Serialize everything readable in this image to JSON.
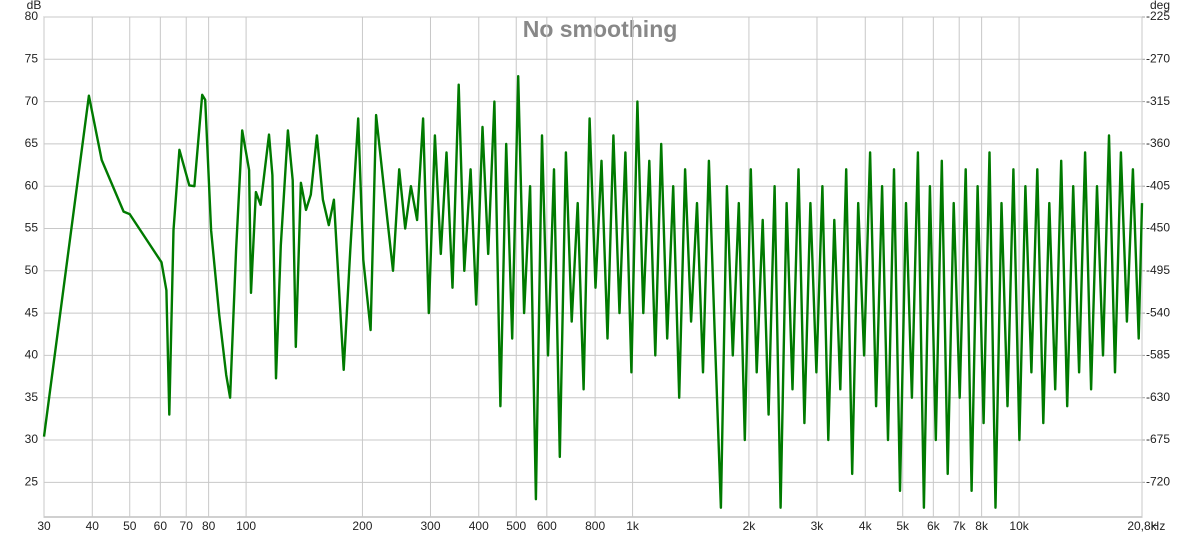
{
  "chart_data": {
    "type": "line",
    "title": "No smoothing",
    "x_label": "Hz",
    "y_label": "dB",
    "y2_label": "deg",
    "log_x": true,
    "grid": true,
    "xlim": [
      30,
      20800
    ],
    "ylim": [
      20.9,
      80
    ],
    "y2lim": [
      -756.9,
      -225
    ],
    "xticks": [
      30,
      40,
      50,
      60,
      70,
      80,
      100,
      200,
      300,
      400,
      500,
      600,
      800,
      {
        "value": 1000,
        "label": "1k"
      },
      {
        "value": 2000,
        "label": "2k"
      },
      {
        "value": 3000,
        "label": "3k"
      },
      {
        "value": 4000,
        "label": "4k"
      },
      {
        "value": 5000,
        "label": "5k"
      },
      {
        "value": 6000,
        "label": "6k"
      },
      {
        "value": 7000,
        "label": "7k"
      },
      {
        "value": 8000,
        "label": "8k"
      },
      {
        "value": 10000,
        "label": "10k"
      },
      {
        "value": 20800,
        "label": "20,8k"
      }
    ],
    "yticks": [
      80,
      75,
      70,
      65,
      60,
      55,
      50,
      45,
      40,
      35,
      30,
      25
    ],
    "y2ticks": [
      -225,
      -270,
      -315,
      -360,
      -405,
      -450,
      -495,
      -540,
      -585,
      -630,
      -675,
      -720
    ],
    "x": [
      30,
      39.2,
      42.3,
      48.2,
      50,
      60.4,
      62.2,
      63.3,
      64.9,
      67.2,
      71.3,
      73.5,
      77,
      78.4,
      81.2,
      85.2,
      88.8,
      90.9,
      94.2,
      97.7,
      101.8,
      103,
      106,
      109,
      114.6,
      117,
      119.5,
      123,
      128.3,
      132,
      134.5,
      138.6,
      142.9,
      147,
      152.5,
      158,
      163.7,
      168.7,
      178.9,
      186,
      195,
      201,
      210,
      217,
      229,
      240,
      249,
      258,
      267,
      277,
      287,
      297,
      308,
      319,
      330,
      342,
      355,
      367,
      381,
      394,
      409,
      423,
      439,
      455,
      471,
      488,
      506,
      524,
      543,
      562,
      583,
      604,
      626,
      648,
      672,
      696,
      721,
      747,
      774,
      802,
      831,
      861,
      892,
      925,
      958,
      993,
      1029,
      1066,
      1105,
      1145,
      1186,
      1229,
      1274,
      1320,
      1367,
      1417,
      1468,
      1521,
      1576,
      1633,
      1692,
      1754,
      1817,
      1883,
      1951,
      2022,
      2095,
      2171,
      2249,
      2331,
      2415,
      2503,
      2593,
      2687,
      2784,
      2885,
      2990,
      3098,
      3210,
      3326,
      3447,
      3571,
      3701,
      3835,
      3973,
      4117,
      4267,
      4421,
      4581,
      4747,
      4919,
      5097,
      5282,
      5473,
      5671,
      5877,
      6089,
      6310,
      6538,
      6775,
      7020,
      7275,
      7538,
      7811,
      8094,
      8387,
      8691,
      9005,
      9332,
      9670,
      10020,
      10383,
      10759,
      11149,
      11553,
      11971,
      12405,
      12854,
      13320,
      13802,
      14302,
      14820,
      15357,
      15913,
      16490,
      17087,
      17706,
      18347,
      19012,
      19700,
      20400,
      20800
    ],
    "series": [
      {
        "color": "#007a00",
        "values": [
          30.4,
          70.7,
          63.1,
          57,
          56.7,
          51,
          47.7,
          33,
          54.8,
          64.3,
          60.1,
          60,
          70.8,
          70.2,
          54.8,
          44.8,
          37.7,
          35,
          52.5,
          66.6,
          61.9,
          47.4,
          59.3,
          57.8,
          66.1,
          61.3,
          37.3,
          53,
          66.6,
          60.7,
          41,
          60.4,
          57.2,
          59,
          66,
          58.4,
          55.4,
          58.4,
          38.3,
          52.5,
          68,
          51.3,
          43,
          68.4,
          58.4,
          50,
          62,
          55,
          60,
          56,
          68,
          45,
          66,
          52,
          64,
          48,
          72,
          50,
          62,
          46,
          67,
          52,
          70,
          34,
          65,
          42,
          73,
          45,
          60,
          23,
          66,
          40,
          62,
          28,
          64,
          44,
          58,
          36,
          68,
          48,
          63,
          42,
          66,
          45,
          64,
          38,
          70,
          45,
          63,
          40,
          65,
          42,
          60,
          35,
          62,
          44,
          58,
          38,
          63,
          42,
          22,
          60,
          40,
          58,
          30,
          62,
          38,
          56,
          33,
          60,
          22,
          58,
          36,
          62,
          32,
          58,
          38,
          60,
          30,
          56,
          36,
          62,
          26,
          58,
          40,
          64,
          34,
          60,
          30,
          62,
          24,
          58,
          35,
          64,
          22,
          60,
          30,
          63,
          26,
          58,
          35,
          62,
          24,
          60,
          32,
          64,
          22,
          58,
          34,
          62,
          30,
          60,
          38,
          62,
          32,
          58,
          36,
          63,
          34,
          60,
          38,
          64,
          36,
          60,
          40,
          66,
          38,
          64,
          44,
          62,
          42,
          58
        ]
      }
    ]
  }
}
